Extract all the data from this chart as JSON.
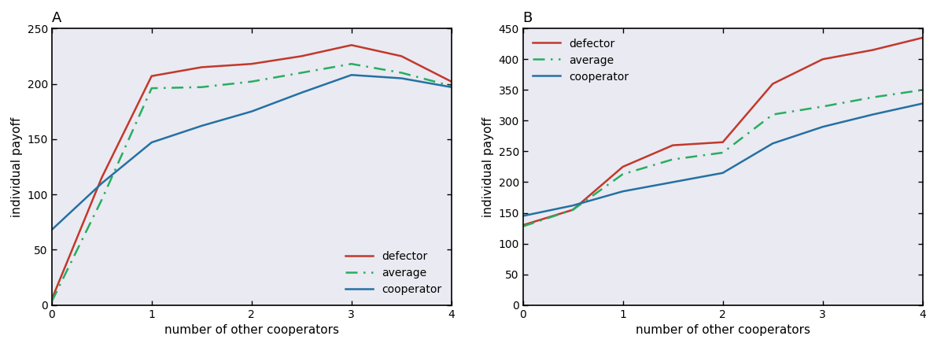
{
  "panel_A": {
    "title": "A",
    "xlabel": "number of other cooperators",
    "ylabel": "individual payoff",
    "x": [
      0,
      0.5,
      1,
      1.5,
      2,
      2.5,
      3,
      3.5,
      4
    ],
    "defector": [
      5,
      115,
      207,
      215,
      218,
      225,
      235,
      225,
      202
    ],
    "average": [
      3,
      95,
      196,
      197,
      202,
      210,
      218,
      210,
      198
    ],
    "cooperator": [
      68,
      110,
      147,
      162,
      175,
      192,
      208,
      205,
      197
    ],
    "ylim": [
      0,
      250
    ],
    "yticks": [
      0,
      50,
      100,
      150,
      200,
      250
    ],
    "xlim": [
      0,
      4
    ],
    "xticks": [
      0,
      1,
      2,
      3,
      4
    ],
    "legend_loc": "lower right"
  },
  "panel_B": {
    "title": "B",
    "xlabel": "number of other cooperators",
    "ylabel": "individual payoff",
    "x": [
      0,
      0.5,
      1,
      1.5,
      2,
      2.5,
      3,
      3.5,
      4
    ],
    "defector": [
      130,
      155,
      225,
      260,
      265,
      360,
      400,
      415,
      435
    ],
    "average": [
      128,
      155,
      213,
      237,
      248,
      310,
      323,
      338,
      350
    ],
    "cooperator": [
      145,
      162,
      185,
      200,
      215,
      263,
      290,
      310,
      328
    ],
    "ylim": [
      0,
      450
    ],
    "yticks": [
      0,
      50,
      100,
      150,
      200,
      250,
      300,
      350,
      400,
      450
    ],
    "xlim": [
      0,
      4
    ],
    "xticks": [
      0,
      1,
      2,
      3,
      4
    ],
    "legend_loc": "upper left"
  },
  "defector_color": "#c1392b",
  "average_color": "#27ae60",
  "cooperator_color": "#2471a3",
  "axes_facecolor": "#eaeaf2",
  "line_width": 1.8,
  "avg_linestyle": "--"
}
